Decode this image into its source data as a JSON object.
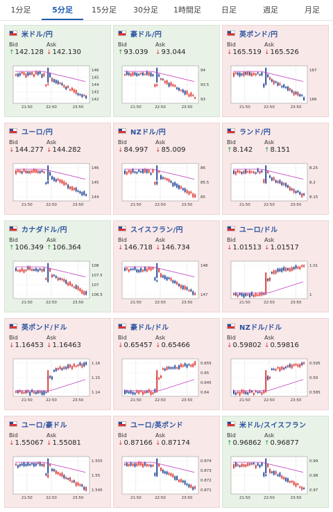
{
  "tabs": [
    "1分足",
    "5分足",
    "15分足",
    "30分足",
    "1時間足",
    "日足",
    "週足",
    "月足"
  ],
  "active_tab": 1,
  "bid_label": "Bid",
  "ask_label": "Ask",
  "x_ticks": [
    "21:50",
    "22:50",
    "23:50"
  ],
  "pairs": [
    {
      "name": "米ドル/円",
      "mood": "up",
      "bid_dir": "up",
      "bid": "142.128",
      "ask_dir": "down",
      "ask": "142.130",
      "yticks": [
        "146",
        "145",
        "144",
        "143",
        "142"
      ],
      "shape": "drop"
    },
    {
      "name": "豪ドル/円",
      "mood": "up",
      "bid_dir": "up",
      "bid": "93.039",
      "ask_dir": "down",
      "ask": "93.044",
      "yticks": [
        "94",
        "93.5",
        "93"
      ],
      "shape": "drop"
    },
    {
      "name": "英ポンド/円",
      "mood": "down",
      "bid_dir": "down",
      "bid": "165.519",
      "ask_dir": "down",
      "ask": "165.526",
      "yticks": [
        "167",
        "166"
      ],
      "shape": "drop"
    },
    {
      "name": "ユーロ/円",
      "mood": "down",
      "bid_dir": "down",
      "bid": "144.277",
      "ask_dir": "down",
      "ask": "144.282",
      "yticks": [
        "146",
        "145",
        "144"
      ],
      "shape": "drop"
    },
    {
      "name": "NZドル/円",
      "mood": "down",
      "bid_dir": "down",
      "bid": "84.997",
      "ask_dir": "down",
      "ask": "85.009",
      "yticks": [
        "86",
        "85.5",
        "85"
      ],
      "shape": "drop"
    },
    {
      "name": "ランド/円",
      "mood": "down",
      "bid_dir": "up",
      "bid": "8.142",
      "ask_dir": "up",
      "ask": "8.151",
      "yticks": [
        "8.25",
        "8.2",
        "8.15"
      ],
      "shape": "drop"
    },
    {
      "name": "カナダドル/円",
      "mood": "up",
      "bid_dir": "up",
      "bid": "106.349",
      "ask_dir": "up",
      "ask": "106.364",
      "yticks": [
        "108",
        "107.5",
        "107",
        "106.5"
      ],
      "shape": "drop"
    },
    {
      "name": "スイスフラン/円",
      "mood": "down",
      "bid_dir": "down",
      "bid": "146.718",
      "ask_dir": "down",
      "ask": "146.734",
      "yticks": [
        "148",
        "147"
      ],
      "shape": "drop"
    },
    {
      "name": "ユーロ/ドル",
      "mood": "down",
      "bid_dir": "down",
      "bid": "1.01513",
      "ask_dir": "down",
      "ask": "1.01517",
      "yticks": [
        "1.01",
        "1"
      ],
      "shape": "rise"
    },
    {
      "name": "英ポンド/ドル",
      "mood": "down",
      "bid_dir": "down",
      "bid": "1.16453",
      "ask_dir": "down",
      "ask": "1.16463",
      "yticks": [
        "1.16",
        "1.15",
        "1.14"
      ],
      "shape": "rise"
    },
    {
      "name": "豪ドル/ドル",
      "mood": "down",
      "bid_dir": "down",
      "bid": "0.65457",
      "ask_dir": "down",
      "ask": "0.65466",
      "yticks": [
        "0.655",
        "0.65",
        "0.645",
        "0.64"
      ],
      "shape": "rise"
    },
    {
      "name": "NZドル/ドル",
      "mood": "down",
      "bid_dir": "down",
      "bid": "0.59802",
      "ask_dir": "down",
      "ask": "0.59816",
      "yticks": [
        "0.595",
        "0.59",
        "0.585"
      ],
      "shape": "rise"
    },
    {
      "name": "ユーロ/豪ドル",
      "mood": "down",
      "bid_dir": "down",
      "bid": "1.55067",
      "ask_dir": "down",
      "ask": "1.55081",
      "yticks": [
        "1.555",
        "1.55",
        "1.545"
      ],
      "shape": "drop"
    },
    {
      "name": "ユーロ/英ポンド",
      "mood": "down",
      "bid_dir": "down",
      "bid": "0.87166",
      "ask_dir": "down",
      "ask": "0.87174",
      "yticks": [
        "0.874",
        "0.873",
        "0.872",
        "0.871"
      ],
      "shape": "drop"
    },
    {
      "name": "米ドル/スイスフラン",
      "mood": "up",
      "bid_dir": "up",
      "bid": "0.96862",
      "ask_dir": "up",
      "ask": "0.96877",
      "yticks": [
        "0.99",
        "0.98",
        "0.97"
      ],
      "shape": "drop"
    }
  ],
  "colors": {
    "accent": "#1f5fb0",
    "candle_up": "#e0403a",
    "candle_down": "#2a4c9a",
    "ma": "#c040c0",
    "arrow_up": "#2a9a3a",
    "arrow_down": "#d23a3a"
  }
}
